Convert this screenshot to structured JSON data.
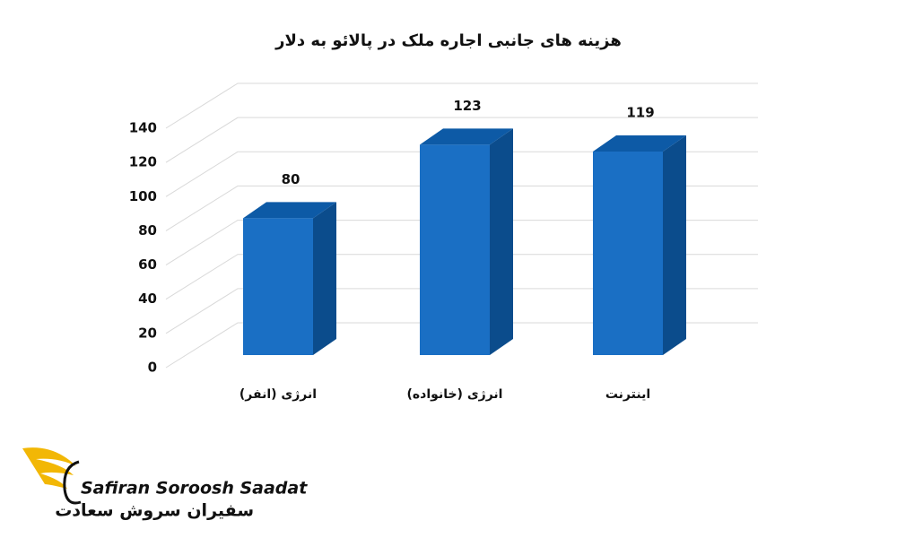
{
  "chart_data": {
    "type": "bar",
    "title": "هزینه های جانبی اجاره ملک در پالائو به دلار",
    "categories": [
      "انرژی (انفر)",
      "انرژی (خانواده)",
      "اینترنت"
    ],
    "values": [
      80,
      123,
      119
    ],
    "color": "#1a6fc4",
    "ylim": [
      0,
      140
    ],
    "yticks": [
      0,
      20,
      40,
      60,
      80,
      100,
      120,
      140
    ],
    "grid": true
  },
  "logo": {
    "latin": "Safiran Soroosh Saadat",
    "persian": "سفیران سروش سعادت"
  }
}
